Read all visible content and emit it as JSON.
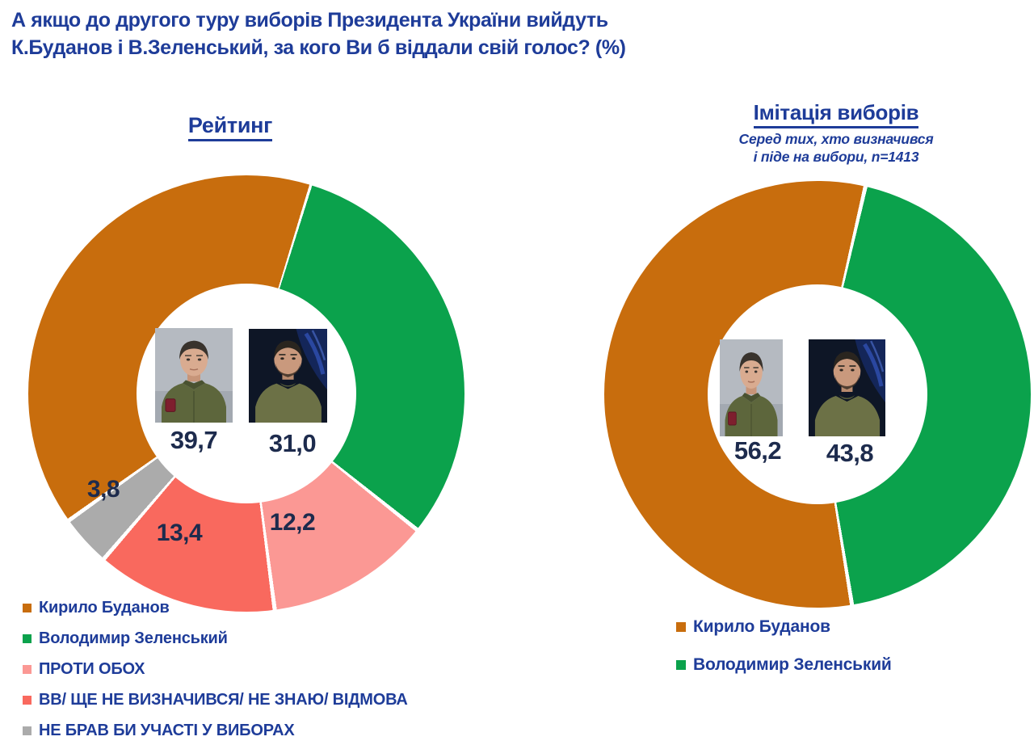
{
  "header": {
    "line1": "А якщо до другого туру виборів Президента України вийдуть",
    "line2": "К.Буданов і В.Зеленський, за кого Ви б віддали свій голос? (%)"
  },
  "colors": {
    "title_blue": "#1e3c99",
    "number_navy": "#1d2b4d",
    "budanov_orange": "#c86d0d",
    "zelensky_green": "#0ba24c",
    "against_both_pink": "#fb9894",
    "undecided_red": "#f9695e",
    "no_vote_gray": "#ababab",
    "background": "#ffffff"
  },
  "icons": {
    "budanov_photo": "budanov-portrait",
    "zelensky_photo": "zelensky-portrait"
  },
  "chart_data": [
    {
      "type": "pie",
      "variant": "donut",
      "title": "Рейтинг",
      "legend_position": "bottom-left",
      "series": [
        {
          "name": "Кирило Буданов",
          "value": 39.7,
          "display": "39,7",
          "color": "#c86d0d"
        },
        {
          "name": "Володимир Зеленський",
          "value": 31.0,
          "display": "31,0",
          "color": "#0ba24c"
        },
        {
          "name": "ПРОТИ ОБОХ",
          "value": 12.2,
          "display": "12,2",
          "color": "#fb9894"
        },
        {
          "name": "ВВ/ ЩЕ НЕ ВИЗНАЧИВСЯ/ НЕ ЗНАЮ/ ВІДМОВА",
          "value": 13.4,
          "display": "13,4",
          "color": "#f9695e"
        },
        {
          "name": "НЕ БРАВ БИ УЧАСТІ У ВИБОРАХ",
          "value": 3.8,
          "display": "3,8",
          "color": "#ababab"
        }
      ],
      "start_angle_deg": 17,
      "draw_order": [
        1,
        2,
        3,
        4,
        0
      ]
    },
    {
      "type": "pie",
      "variant": "donut",
      "title": "Імітація виборів",
      "subtitle_line1": "Серед тих, хто визначився",
      "subtitle_line2": "і піде на вибори, n=1413",
      "sample_n": 1413,
      "legend_position": "bottom",
      "series": [
        {
          "name": "Кирило Буданов",
          "value": 56.2,
          "display": "56,2",
          "color": "#c86d0d"
        },
        {
          "name": "Володимир Зеленський",
          "value": 43.8,
          "display": "43,8",
          "color": "#0ba24c"
        }
      ],
      "start_angle_deg": 13,
      "draw_order": [
        1,
        0
      ]
    }
  ]
}
